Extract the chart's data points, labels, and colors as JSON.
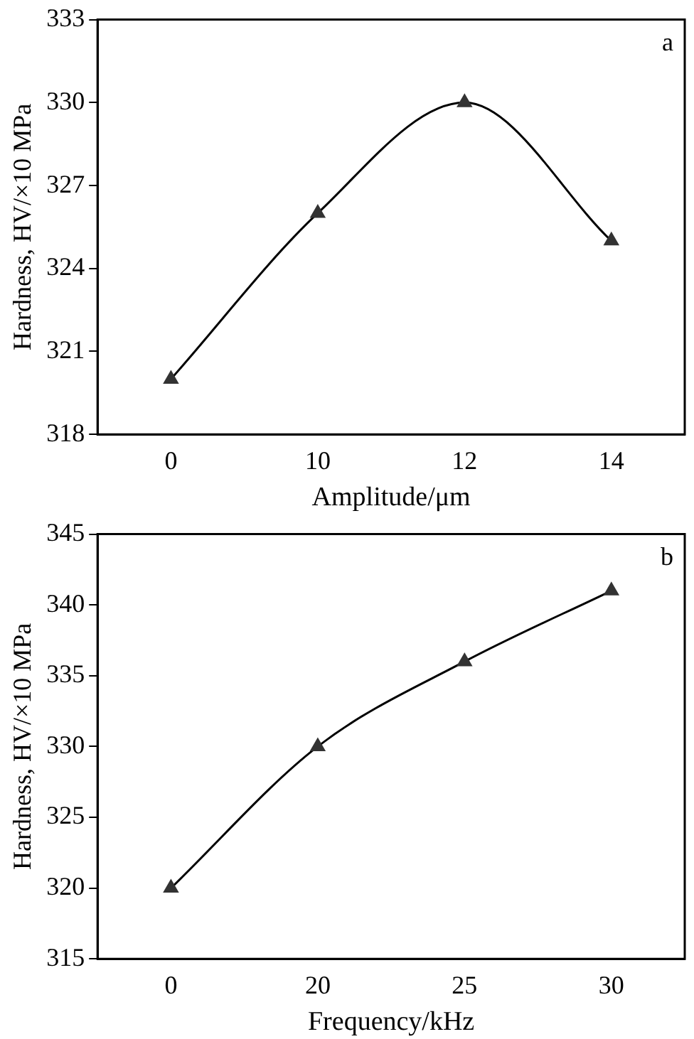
{
  "chart_data": [
    {
      "type": "line",
      "xlabel": "Amplitude/μm",
      "ylabel": "Hardness, HV/×10 MPa",
      "categories": [
        "0",
        "10",
        "12",
        "14"
      ],
      "series": [
        {
          "color": "#333333",
          "values": [
            320,
            326,
            330,
            325
          ]
        }
      ],
      "ylim": [
        318,
        333
      ],
      "yticks": [
        318,
        321,
        324,
        327,
        330,
        333
      ],
      "grid": false,
      "legend": false,
      "marker": "triangle",
      "line_style": "solid",
      "annotations": [
        "a"
      ]
    },
    {
      "type": "line",
      "xlabel": "Frequency/kHz",
      "ylabel": "Hardness, HV/×10 MPa",
      "categories": [
        "0",
        "20",
        "25",
        "30"
      ],
      "series": [
        {
          "color": "#333333",
          "values": [
            320,
            330,
            336,
            341
          ]
        }
      ],
      "ylim": [
        315,
        345
      ],
      "yticks": [
        315,
        320,
        325,
        330,
        335,
        340,
        345
      ],
      "grid": false,
      "legend": false,
      "marker": "triangle",
      "line_style": "solid",
      "annotations": [
        "b"
      ]
    }
  ]
}
